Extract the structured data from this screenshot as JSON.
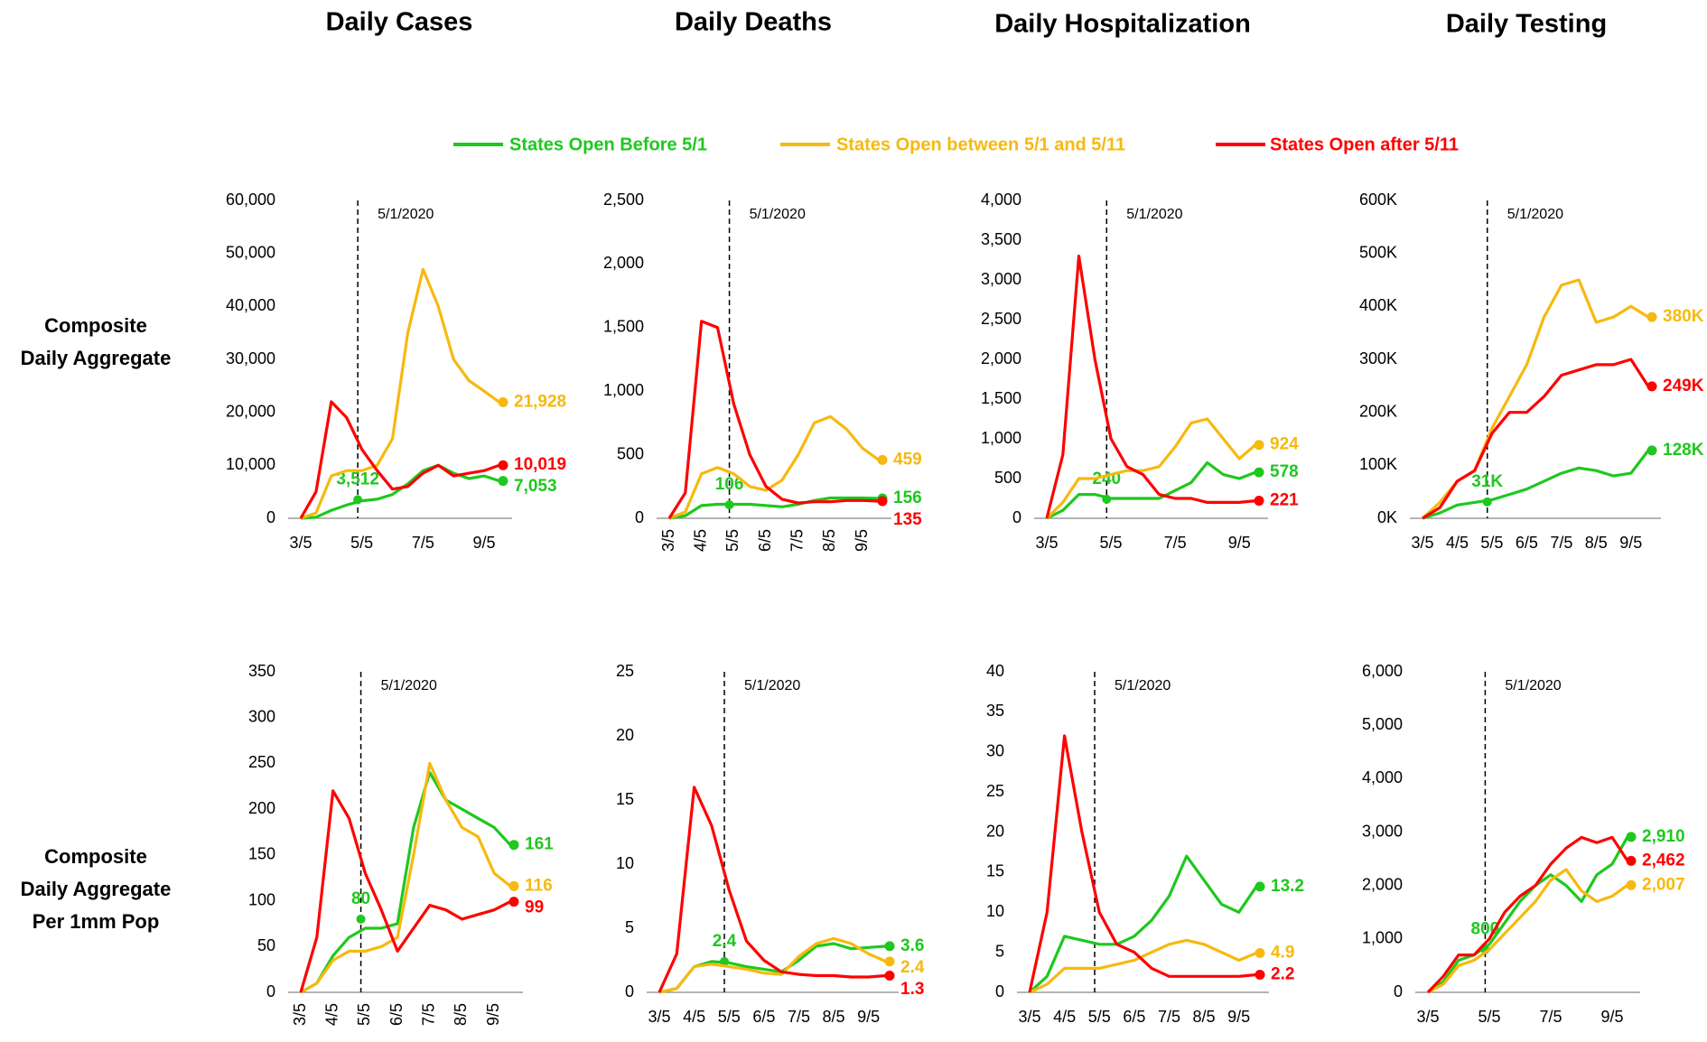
{
  "column_titles": [
    "Daily Cases",
    "Daily Deaths",
    "Daily Hospitalization",
    "Daily Testing"
  ],
  "row_labels": [
    [
      "Composite",
      "Daily Aggregate"
    ],
    [
      "Composite",
      "Daily Aggregate",
      "Per 1mm Pop"
    ]
  ],
  "legend": [
    {
      "name": "States Open Before 5/1",
      "color": "#1ec81e"
    },
    {
      "name": "States Open between 5/1 and 5/11",
      "color": "#f7b90f"
    },
    {
      "name": "States Open after 5/11",
      "color": "#ff0000"
    }
  ],
  "chart_data": [
    {
      "type": "line",
      "annotation": "5/1/2020",
      "categories": [
        "3/5",
        null,
        null,
        null,
        "5/5",
        null,
        null,
        null,
        "7/5",
        null,
        null,
        null,
        "9/5",
        null
      ],
      "ylim": [
        0,
        60000
      ],
      "yticks": [
        0,
        {
          "value": 10000,
          "label": "10,000"
        },
        {
          "value": 20000,
          "label": "20,000"
        },
        {
          "value": 30000,
          "label": "30,000"
        },
        {
          "value": 40000,
          "label": "40,000"
        },
        {
          "value": 50000,
          "label": "50,000"
        },
        {
          "value": 60000,
          "label": "60,000"
        }
      ],
      "series": [
        {
          "color": "#1ec81e",
          "values": [
            0,
            200,
            1500,
            2500,
            3300,
            3600,
            4500,
            6500,
            9000,
            10000,
            8500,
            7500,
            8000,
            7053
          ],
          "may1_point": {
            "value": 3512,
            "label": "3,512"
          },
          "end_point": {
            "value": 7053,
            "label": "7,053"
          }
        },
        {
          "color": "#f7b90f",
          "values": [
            0,
            1000,
            8000,
            9000,
            9000,
            10000,
            15000,
            35000,
            47000,
            40000,
            30000,
            26000,
            24000,
            21928
          ],
          "end_point": {
            "value": 21928,
            "label": "21,928"
          }
        },
        {
          "color": "#ff0000",
          "values": [
            0,
            5000,
            22000,
            19000,
            13000,
            9000,
            5500,
            6000,
            8500,
            10000,
            8000,
            8500,
            9000,
            10019
          ],
          "end_point": {
            "value": 10019,
            "label": "10,019"
          }
        }
      ]
    },
    {
      "type": "line",
      "annotation": "5/1/2020",
      "xtick_rotation": 90,
      "categories": [
        "3/5",
        null,
        "4/5",
        null,
        "5/5",
        null,
        "6/5",
        null,
        "7/5",
        null,
        "8/5",
        null,
        "9/5",
        null
      ],
      "ylim": [
        0,
        2500
      ],
      "yticks": [
        0,
        500,
        {
          "value": 1000,
          "label": "1,000"
        },
        {
          "value": 1500,
          "label": "1,500"
        },
        {
          "value": 2000,
          "label": "2,000"
        },
        {
          "value": 2500,
          "label": "2,500"
        }
      ],
      "series": [
        {
          "color": "#1ec81e",
          "values": [
            0,
            20,
            100,
            110,
            110,
            110,
            100,
            90,
            110,
            140,
            160,
            160,
            160,
            156
          ],
          "may1_point": {
            "value": 106,
            "label": "106"
          },
          "end_point": {
            "value": 156,
            "label": "156"
          }
        },
        {
          "color": "#f7b90f",
          "values": [
            0,
            50,
            350,
            400,
            350,
            250,
            220,
            300,
            500,
            750,
            800,
            700,
            550,
            459
          ],
          "end_point": {
            "value": 459,
            "label": "459"
          }
        },
        {
          "color": "#ff0000",
          "values": [
            0,
            200,
            1550,
            1500,
            900,
            500,
            250,
            150,
            120,
            130,
            130,
            140,
            140,
            135
          ],
          "end_point": {
            "value": 135,
            "label": "135"
          }
        }
      ]
    },
    {
      "type": "line",
      "annotation": "5/1/2020",
      "categories": [
        "3/5",
        null,
        null,
        null,
        "5/5",
        null,
        null,
        null,
        "7/5",
        null,
        null,
        null,
        "9/5",
        null
      ],
      "ylim": [
        0,
        4000
      ],
      "yticks": [
        0,
        500,
        {
          "value": 1000,
          "label": "1,000"
        },
        {
          "value": 1500,
          "label": "1,500"
        },
        {
          "value": 2000,
          "label": "2,000"
        },
        {
          "value": 2500,
          "label": "2,500"
        },
        {
          "value": 3000,
          "label": "3,000"
        },
        {
          "value": 3500,
          "label": "3,500"
        },
        {
          "value": 4000,
          "label": "4,000"
        }
      ],
      "series": [
        {
          "color": "#1ec81e",
          "values": [
            0,
            100,
            300,
            300,
            250,
            250,
            250,
            250,
            350,
            450,
            700,
            550,
            500,
            578
          ],
          "may1_point": {
            "value": 240,
            "label": "240"
          },
          "end_point": {
            "value": 578,
            "label": "578"
          }
        },
        {
          "color": "#f7b90f",
          "values": [
            0,
            200,
            500,
            500,
            550,
            600,
            600,
            650,
            900,
            1200,
            1250,
            1000,
            750,
            924
          ],
          "end_point": {
            "value": 924,
            "label": "924"
          }
        },
        {
          "color": "#ff0000",
          "values": [
            0,
            800,
            3300,
            2000,
            1000,
            650,
            550,
            300,
            250,
            250,
            200,
            200,
            200,
            221
          ],
          "end_point": {
            "value": 221,
            "label": "221"
          }
        }
      ]
    },
    {
      "type": "line",
      "annotation": "5/1/2020",
      "categories": [
        "3/5",
        null,
        "4/5",
        null,
        "5/5",
        null,
        "6/5",
        null,
        "7/5",
        null,
        "8/5",
        null,
        "9/5",
        null
      ],
      "ylim": [
        0,
        600000
      ],
      "yticks": [
        {
          "value": 0,
          "label": "0K"
        },
        {
          "value": 100000,
          "label": "100K"
        },
        {
          "value": 200000,
          "label": "200K"
        },
        {
          "value": 300000,
          "label": "300K"
        },
        {
          "value": 400000,
          "label": "400K"
        },
        {
          "value": 500000,
          "label": "500K"
        },
        {
          "value": 600000,
          "label": "600K"
        }
      ],
      "series": [
        {
          "color": "#1ec81e",
          "values": [
            0,
            10000,
            25000,
            30000,
            35000,
            45000,
            55000,
            70000,
            85000,
            95000,
            90000,
            80000,
            85000,
            128000
          ],
          "may1_point": {
            "value": 31000,
            "label": "31K"
          },
          "end_point": {
            "value": 128000,
            "label": "128K"
          }
        },
        {
          "color": "#f7b90f",
          "values": [
            0,
            30000,
            70000,
            90000,
            170000,
            230000,
            290000,
            380000,
            440000,
            450000,
            370000,
            380000,
            400000,
            380000
          ],
          "end_point": {
            "value": 380000,
            "label": "380K"
          }
        },
        {
          "color": "#ff0000",
          "values": [
            0,
            20000,
            70000,
            90000,
            160000,
            200000,
            200000,
            230000,
            270000,
            280000,
            290000,
            290000,
            300000,
            249000
          ],
          "end_point": {
            "value": 249000,
            "label": "249K"
          }
        }
      ]
    },
    {
      "type": "line",
      "annotation": "5/1/2020",
      "xtick_rotation": 90,
      "categories": [
        "3/5",
        null,
        "4/5",
        null,
        "5/5",
        null,
        "6/5",
        null,
        "7/5",
        null,
        "8/5",
        null,
        "9/5",
        null
      ],
      "ylim": [
        0,
        350
      ],
      "yticks": [
        0,
        50,
        100,
        150,
        200,
        250,
        300,
        350
      ],
      "series": [
        {
          "color": "#1ec81e",
          "values": [
            0,
            10,
            40,
            60,
            70,
            70,
            75,
            180,
            240,
            210,
            200,
            190,
            180,
            161
          ],
          "may1_point": {
            "value": 80,
            "label": "80"
          },
          "end_point": {
            "value": 161,
            "label": "161"
          }
        },
        {
          "color": "#f7b90f",
          "values": [
            0,
            10,
            35,
            45,
            45,
            50,
            60,
            150,
            250,
            210,
            180,
            170,
            130,
            116
          ],
          "end_point": {
            "value": 116,
            "label": "116"
          }
        },
        {
          "color": "#ff0000",
          "values": [
            0,
            60,
            220,
            190,
            130,
            90,
            45,
            70,
            95,
            90,
            80,
            85,
            90,
            99
          ],
          "end_point": {
            "value": 99,
            "label": "99"
          }
        }
      ]
    },
    {
      "type": "line",
      "annotation": "5/1/2020",
      "categories": [
        "3/5",
        null,
        "4/5",
        null,
        "5/5",
        null,
        "6/5",
        null,
        "7/5",
        null,
        "8/5",
        null,
        "9/5",
        null
      ],
      "ylim": [
        0,
        25
      ],
      "yticks": [
        0,
        5,
        10,
        15,
        20,
        25
      ],
      "series": [
        {
          "color": "#1ec81e",
          "values": [
            0,
            0.3,
            2,
            2.4,
            2.3,
            2,
            1.8,
            1.6,
            2.5,
            3.6,
            3.8,
            3.4,
            3.5,
            3.6
          ],
          "may1_point": {
            "value": 2.4,
            "label": "2.4"
          },
          "end_point": {
            "value": 3.6,
            "label": "3.6"
          }
        },
        {
          "color": "#f7b90f",
          "values": [
            0,
            0.3,
            2,
            2.2,
            2,
            1.8,
            1.5,
            1.4,
            2.8,
            3.8,
            4.2,
            3.8,
            3,
            2.4
          ],
          "end_point": {
            "value": 2.4,
            "label": "2.4"
          }
        },
        {
          "color": "#ff0000",
          "values": [
            0,
            3,
            16,
            13,
            8,
            4,
            2.5,
            1.6,
            1.4,
            1.3,
            1.3,
            1.2,
            1.2,
            1.3
          ],
          "end_point": {
            "value": 1.3,
            "label": "1.3"
          }
        }
      ]
    },
    {
      "type": "line",
      "annotation": "5/1/2020",
      "categories": [
        "3/5",
        null,
        "4/5",
        null,
        "5/5",
        null,
        "6/5",
        null,
        "7/5",
        null,
        "8/5",
        null,
        "9/5",
        null
      ],
      "ylim": [
        0,
        40
      ],
      "yticks": [
        0,
        5,
        10,
        15,
        20,
        25,
        30,
        35,
        40
      ],
      "series": [
        {
          "color": "#1ec81e",
          "values": [
            0,
            2,
            7,
            6.5,
            6,
            6,
            7,
            9,
            12,
            17,
            14,
            11,
            10,
            13.2
          ],
          "end_point": {
            "value": 13.2,
            "label": "13.2"
          }
        },
        {
          "color": "#f7b90f",
          "values": [
            0,
            1,
            3,
            3,
            3,
            3.5,
            4,
            5,
            6,
            6.5,
            6,
            5,
            4,
            4.9
          ],
          "end_point": {
            "value": 4.9,
            "label": "4.9"
          }
        },
        {
          "color": "#ff0000",
          "values": [
            0,
            10,
            32,
            20,
            10,
            6,
            5,
            3,
            2,
            2,
            2,
            2,
            2,
            2.2
          ],
          "end_point": {
            "value": 2.2,
            "label": "2.2"
          }
        }
      ]
    },
    {
      "type": "line",
      "annotation": "5/1/2020",
      "categories": [
        "3/5",
        null,
        null,
        null,
        "5/5",
        null,
        null,
        null,
        "7/5",
        null,
        null,
        null,
        "9/5",
        null
      ],
      "ylim": [
        0,
        6000
      ],
      "yticks": [
        0,
        {
          "value": 1000,
          "label": "1,000"
        },
        {
          "value": 2000,
          "label": "2,000"
        },
        {
          "value": 3000,
          "label": "3,000"
        },
        {
          "value": 4000,
          "label": "4,000"
        },
        {
          "value": 5000,
          "label": "5,000"
        },
        {
          "value": 6000,
          "label": "6,000"
        }
      ],
      "series": [
        {
          "color": "#1ec81e",
          "values": [
            0,
            200,
            600,
            700,
            900,
            1300,
            1700,
            2000,
            2200,
            2000,
            1700,
            2200,
            2400,
            2910
          ],
          "may1_point": {
            "value": 800,
            "label": "800"
          },
          "end_point": {
            "value": 2910,
            "label": "2,910"
          }
        },
        {
          "color": "#f7b90f",
          "values": [
            0,
            150,
            500,
            600,
            800,
            1100,
            1400,
            1700,
            2100,
            2300,
            1900,
            1700,
            1800,
            2007
          ],
          "end_point": {
            "value": 2007,
            "label": "2,007"
          }
        },
        {
          "color": "#ff0000",
          "values": [
            0,
            300,
            700,
            700,
            1000,
            1500,
            1800,
            2000,
            2400,
            2700,
            2900,
            2800,
            2900,
            2462
          ],
          "end_point": {
            "value": 2462,
            "label": "2,462"
          }
        }
      ]
    }
  ]
}
